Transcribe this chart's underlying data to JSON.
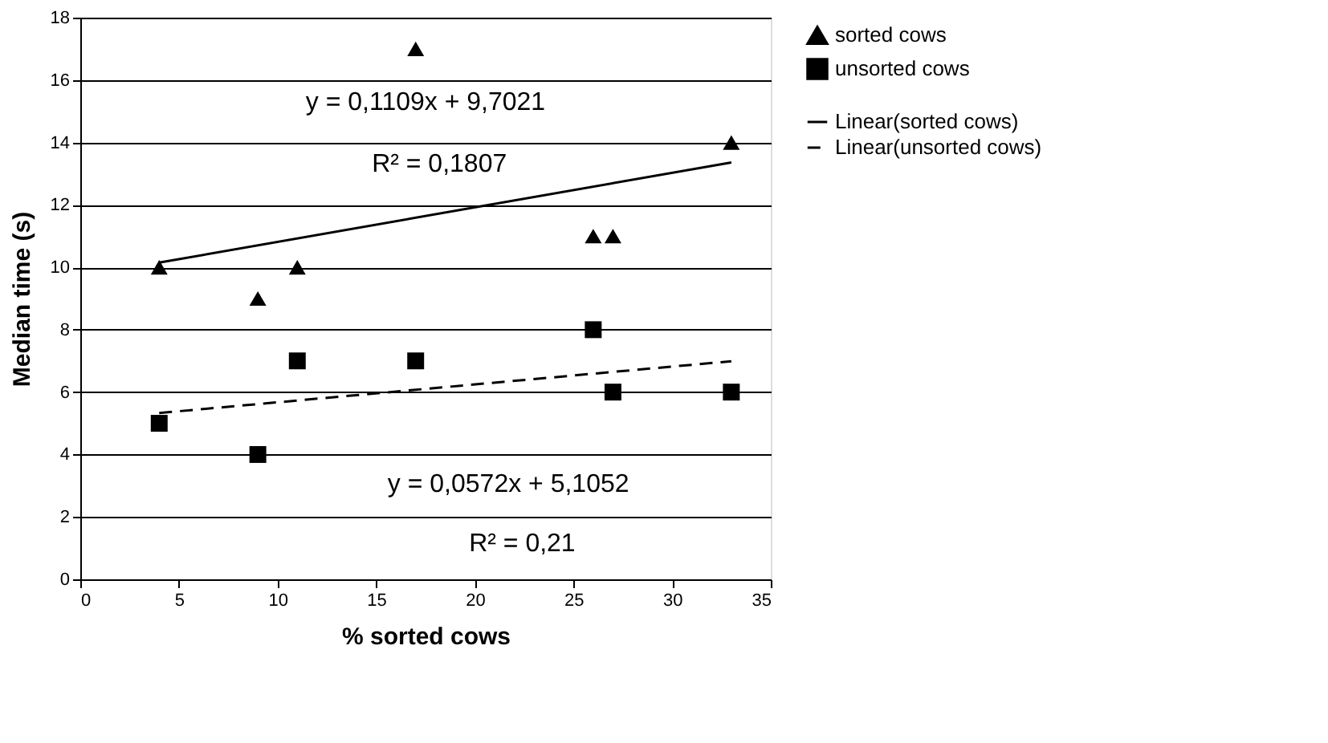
{
  "chart_data": {
    "type": "scatter",
    "xlabel": "% sorted cows",
    "ylabel": "Median time (s)",
    "xlim": [
      0,
      35
    ],
    "xticks": [
      0,
      5,
      10,
      15,
      20,
      25,
      30,
      35
    ],
    "ylim": [
      0,
      18
    ],
    "yticks": [
      0,
      2,
      4,
      6,
      8,
      10,
      12,
      14,
      16,
      18
    ],
    "grid": "y",
    "legend": "right",
    "series": [
      {
        "name": "sorted cows",
        "marker": "triangle",
        "color": "#000000",
        "x": [
          4,
          9,
          11,
          17,
          26,
          27,
          33
        ],
        "values": [
          10,
          9,
          10,
          17,
          11,
          11,
          14
        ]
      },
      {
        "name": "unsorted cows",
        "marker": "square",
        "color": "#000000",
        "x": [
          4,
          9,
          11,
          17,
          26,
          27,
          33
        ],
        "values": [
          5,
          4,
          7,
          7,
          8,
          6,
          6
        ]
      },
      {
        "name": "Linear(sorted cows)",
        "type": "line",
        "line_style": "solid",
        "color": "#000000",
        "x": [
          4,
          33
        ],
        "values": [
          10.15,
          13.36
        ]
      },
      {
        "name": "Linear(unsorted cows)",
        "type": "line",
        "line_style": "dashed",
        "color": "#000000",
        "x": [
          4,
          33
        ],
        "values": [
          5.33,
          6.99
        ]
      }
    ],
    "annotations": [
      "y = 0,1109x + 9,7021",
      "R² = 0,1807",
      "y = 0,0572x + 5,1052",
      "R² = 0,21"
    ]
  }
}
